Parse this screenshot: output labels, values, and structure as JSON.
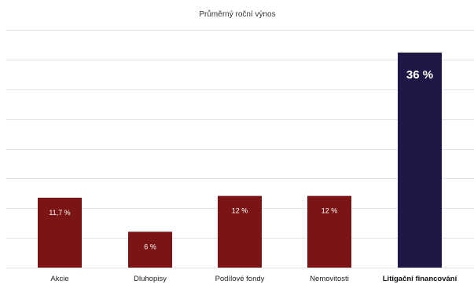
{
  "chart_data": {
    "type": "bar",
    "title": "Průměrný roční výnos",
    "categories": [
      "Akcie",
      "Dluhopisy",
      "Podílové fondy",
      "Nemovitosti",
      "Litigační financování"
    ],
    "values": [
      11.7,
      6,
      12,
      12,
      36
    ],
    "data_labels": [
      "11,7 %",
      "6 %",
      "12 %",
      "12 %",
      "36 %"
    ],
    "highlight_index": 4,
    "ylim": [
      0,
      40
    ],
    "grid": true,
    "legend": "none",
    "xlabel": "",
    "ylabel": "",
    "colors": {
      "bar": "#7b1414",
      "highlight_bar": "#1f1846",
      "label_text": "#ffffff",
      "axis_text": "#222222",
      "grid": "#e2e2e2"
    }
  }
}
